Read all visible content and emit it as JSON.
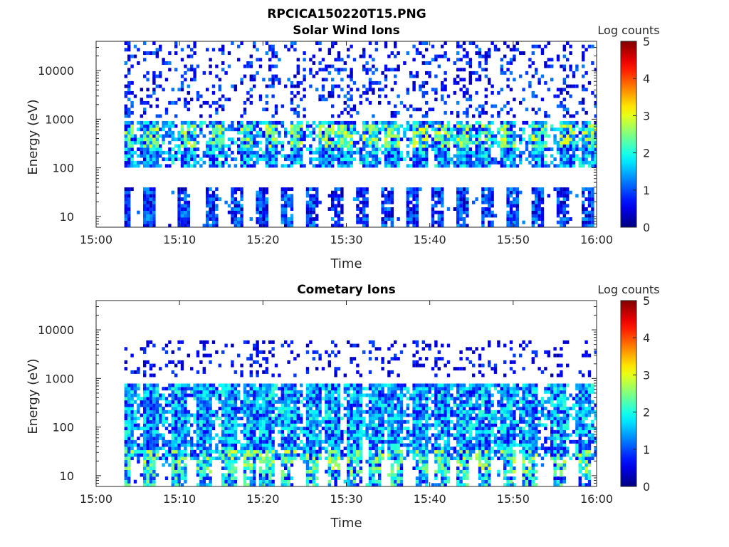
{
  "figure": {
    "title": "RPCICA150220T15.PNG"
  },
  "chart_data": [
    {
      "type": "heatmap",
      "title": "Solar Wind Ions",
      "xlabel": "Time",
      "ylabel": "Energy (eV)",
      "x_ticks": [
        "15:00",
        "15:10",
        "15:20",
        "15:30",
        "15:40",
        "15:50",
        "16:00"
      ],
      "x_range": [
        "15:00",
        "16:00"
      ],
      "y_scale": "log",
      "y_ticks": [
        "10",
        "100",
        "1000",
        "10000"
      ],
      "y_range": [
        6,
        40000
      ],
      "colorbar": {
        "label": "Log counts",
        "ticks": [
          "0",
          "1",
          "2",
          "3",
          "4",
          "5"
        ],
        "range": [
          0,
          5
        ],
        "colormap": "jet"
      },
      "sweeps_min": [
        3.5,
        6.5,
        11,
        14.5,
        18,
        21,
        24,
        27.5,
        30,
        33,
        35.5,
        39,
        41.5,
        44,
        46.5,
        49.5,
        53,
        56.5,
        59
      ],
      "lowE_sweeps_min": [
        3.5,
        6.5,
        10.5,
        14,
        17,
        20,
        23,
        26,
        29,
        32,
        35,
        38,
        41,
        44,
        47,
        50,
        53,
        56,
        59
      ],
      "bands": [
        {
          "e_min": 100,
          "e_max": 900,
          "level_range": [
            0.5,
            2.2
          ],
          "occupancy": 0.65
        },
        {
          "e_min": 6,
          "e_max": 40,
          "level_range": [
            0.2,
            1.5
          ],
          "occupancy": 0.55
        },
        {
          "e_min": 1000,
          "e_max": 40000,
          "level_range": [
            0.2,
            1.3
          ],
          "occupancy": 0.12
        }
      ],
      "peaks": {
        "energy_eV": 450,
        "level_range": [
          2.2,
          3.1
        ]
      }
    },
    {
      "type": "heatmap",
      "title": "Cometary Ions",
      "xlabel": "Time",
      "ylabel": "Energy (eV)",
      "x_ticks": [
        "15:00",
        "15:10",
        "15:20",
        "15:30",
        "15:40",
        "15:50",
        "16:00"
      ],
      "x_range": [
        "15:00",
        "16:00"
      ],
      "y_scale": "log",
      "y_ticks": [
        "10",
        "100",
        "1000",
        "10000"
      ],
      "y_range": [
        6,
        40000
      ],
      "colorbar": {
        "label": "Log counts",
        "ticks": [
          "0",
          "1",
          "2",
          "3",
          "4",
          "5"
        ],
        "range": [
          0,
          5
        ],
        "colormap": "jet"
      },
      "sweeps_min": [
        3.5,
        6.5,
        10,
        13,
        16,
        18.5,
        20.5,
        23,
        26,
        28.5,
        31,
        33.5,
        36,
        39,
        41.5,
        44,
        46.5,
        49.5,
        52,
        55.5,
        58.5
      ],
      "bands": [
        {
          "e_min": 20,
          "e_max": 800,
          "level_range": [
            0.5,
            2.2
          ],
          "occupancy": 0.7
        },
        {
          "e_min": 6,
          "e_max": 20,
          "level_range": [
            0.5,
            2.6
          ],
          "occupancy": 0.6
        },
        {
          "e_min": 1000,
          "e_max": 6000,
          "level_range": [
            0.2,
            1.0
          ],
          "occupancy": 0.1
        }
      ],
      "peaks": {
        "energy_eV": 20,
        "level_range": [
          1.8,
          3.0
        ]
      }
    }
  ]
}
